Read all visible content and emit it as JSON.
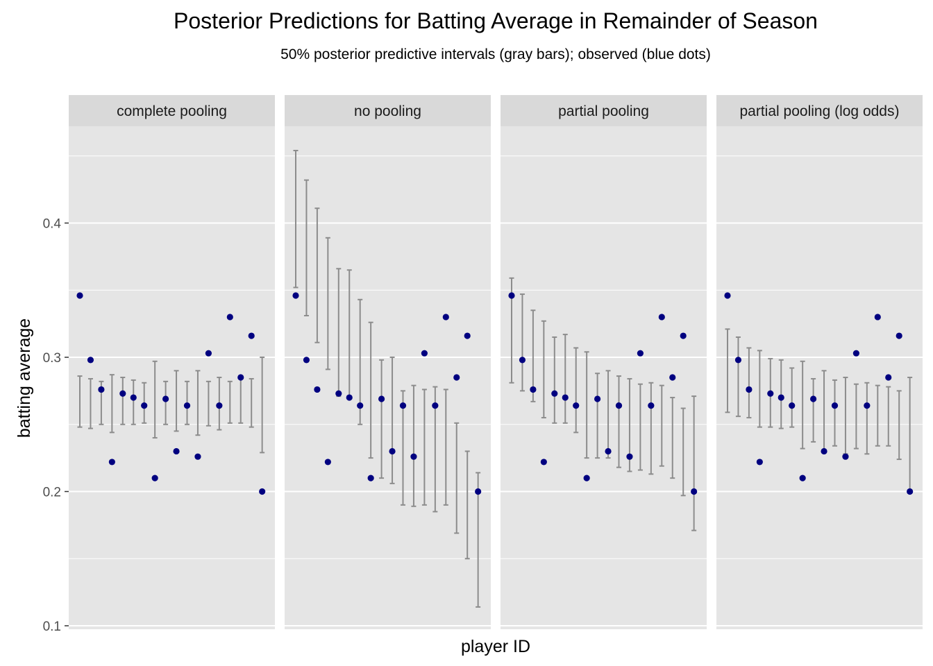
{
  "chart_data": {
    "type": "scatter",
    "title": "Posterior Predictions for Batting Average in Remainder of Season",
    "subtitle": "50% posterior predictive intervals (gray bars); observed (blue dots)",
    "xlabel": "player ID",
    "ylabel": "batting average",
    "ylim": [
      0.1,
      0.46
    ],
    "yticks": [
      0.1,
      0.2,
      0.3,
      0.4
    ],
    "ytick_labels": [
      "0.1",
      "0.2",
      "0.3",
      "0.4"
    ],
    "grid": true,
    "colors": {
      "panel_background": "#e5e5e5",
      "strip_background": "#d9d9d9",
      "grid": "#ffffff",
      "interval": "#8c8c8c",
      "observed": "#000080"
    },
    "observed": [
      0.346,
      0.298,
      0.276,
      0.222,
      0.273,
      0.27,
      0.264,
      0.21,
      0.269,
      0.23,
      0.264,
      0.226,
      0.303,
      0.264,
      0.33,
      0.285,
      0.316,
      0.2
    ],
    "facets": [
      {
        "name": "complete pooling",
        "intervals": [
          [
            0.248,
            0.286
          ],
          [
            0.247,
            0.284
          ],
          [
            0.25,
            0.282
          ],
          [
            0.244,
            0.287
          ],
          [
            0.25,
            0.285
          ],
          [
            0.25,
            0.283
          ],
          [
            0.251,
            0.281
          ],
          [
            0.24,
            0.297
          ],
          [
            0.25,
            0.282
          ],
          [
            0.245,
            0.29
          ],
          [
            0.25,
            0.282
          ],
          [
            0.242,
            0.29
          ],
          [
            0.249,
            0.282
          ],
          [
            0.246,
            0.285
          ],
          [
            0.251,
            0.282
          ],
          [
            0.251,
            0.285
          ],
          [
            0.248,
            0.284
          ],
          [
            0.229,
            0.3
          ]
        ]
      },
      {
        "name": "no pooling",
        "intervals": [
          [
            0.352,
            0.454
          ],
          [
            0.331,
            0.432
          ],
          [
            0.311,
            0.411
          ],
          [
            0.291,
            0.389
          ],
          [
            0.271,
            0.366
          ],
          [
            0.271,
            0.365
          ],
          [
            0.25,
            0.343
          ],
          [
            0.225,
            0.326
          ],
          [
            0.21,
            0.298
          ],
          [
            0.206,
            0.3
          ],
          [
            0.19,
            0.275
          ],
          [
            0.189,
            0.279
          ],
          [
            0.19,
            0.276
          ],
          [
            0.185,
            0.278
          ],
          [
            0.19,
            0.276
          ],
          [
            0.169,
            0.251
          ],
          [
            0.15,
            0.23
          ],
          [
            0.114,
            0.214
          ]
        ]
      },
      {
        "name": "partial pooling",
        "intervals": [
          [
            0.281,
            0.359
          ],
          [
            0.275,
            0.347
          ],
          [
            0.267,
            0.335
          ],
          [
            0.255,
            0.327
          ],
          [
            0.251,
            0.315
          ],
          [
            0.251,
            0.317
          ],
          [
            0.244,
            0.307
          ],
          [
            0.225,
            0.304
          ],
          [
            0.225,
            0.288
          ],
          [
            0.225,
            0.29
          ],
          [
            0.218,
            0.286
          ],
          [
            0.215,
            0.284
          ],
          [
            0.216,
            0.28
          ],
          [
            0.213,
            0.281
          ],
          [
            0.219,
            0.279
          ],
          [
            0.21,
            0.27
          ],
          [
            0.197,
            0.262
          ],
          [
            0.171,
            0.271
          ]
        ]
      },
      {
        "name": "partial pooling (log odds)",
        "intervals": [
          [
            0.259,
            0.321
          ],
          [
            0.256,
            0.315
          ],
          [
            0.255,
            0.307
          ],
          [
            0.248,
            0.305
          ],
          [
            0.248,
            0.299
          ],
          [
            0.247,
            0.298
          ],
          [
            0.248,
            0.292
          ],
          [
            0.232,
            0.297
          ],
          [
            0.237,
            0.284
          ],
          [
            0.231,
            0.29
          ],
          [
            0.234,
            0.283
          ],
          [
            0.228,
            0.285
          ],
          [
            0.232,
            0.28
          ],
          [
            0.228,
            0.281
          ],
          [
            0.234,
            0.279
          ],
          [
            0.234,
            0.278
          ],
          [
            0.224,
            0.275
          ],
          [
            0.201,
            0.285
          ]
        ]
      }
    ]
  }
}
